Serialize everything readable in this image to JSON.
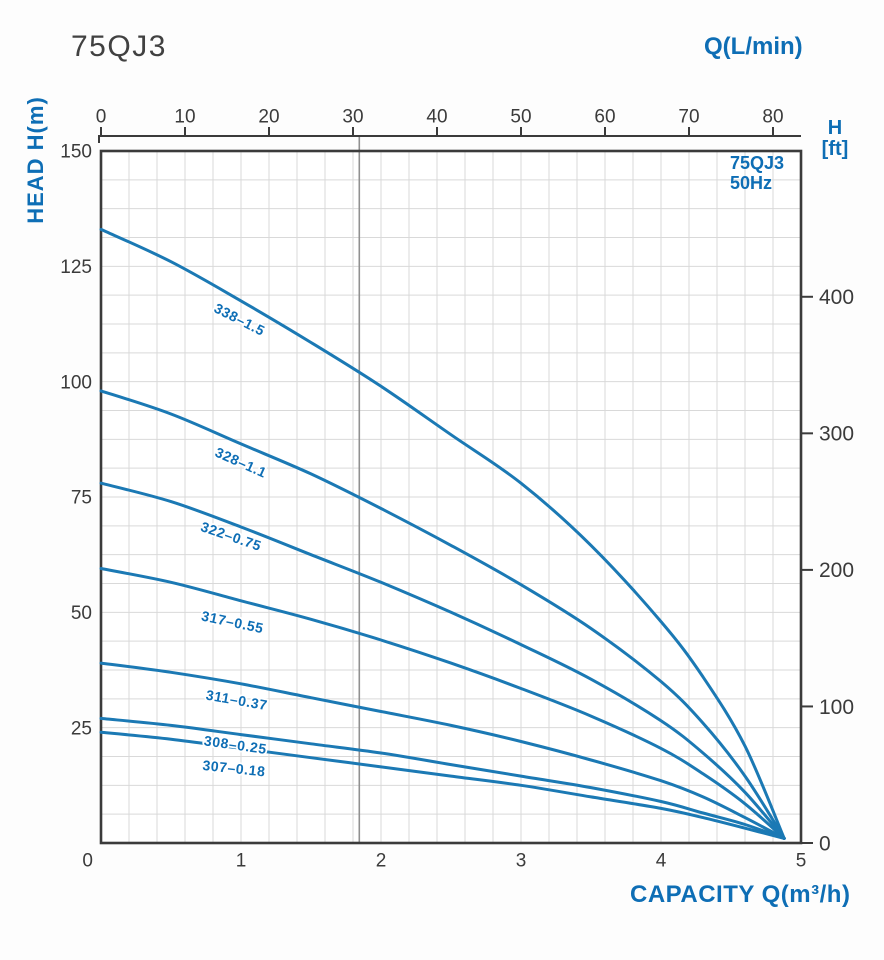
{
  "page": {
    "title": "75QJ3"
  },
  "labels": {
    "top_axis_title": "Q(L/min)",
    "left_axis_title": "HEAD H(m)",
    "right_axis_title_line1": "H",
    "right_axis_title_line2": "[ft]",
    "bottom_axis_title": "CAPACITY Q(m³/h)",
    "legend_line1": "75QJ3",
    "legend_line2": "50Hz"
  },
  "colors": {
    "curve_blue": "#1b79b4",
    "label_blue": "#0e6eb5",
    "title_dark": "#414141",
    "axis_dark": "#3b3b3b",
    "grid_gray": "#d9d9d9",
    "ref_line_gray": "#909090",
    "plot_bg": "#ffffff"
  },
  "chart_data": {
    "type": "line",
    "title": "75QJ3",
    "model": "75QJ3",
    "frequency": "50Hz",
    "x_bottom": {
      "title": "CAPACITY Q(m³/h)",
      "unit": "m³/h",
      "min": 0,
      "max": 5,
      "ticks": [
        1,
        2,
        3,
        4,
        5
      ],
      "origin_label": "0"
    },
    "x_top": {
      "title": "Q(L/min)",
      "unit": "L/min",
      "ticks": [
        0,
        10,
        20,
        30,
        40,
        50,
        60,
        70,
        80
      ],
      "lmin_per_m3h": 16.667
    },
    "y_left": {
      "title": "HEAD H(m)",
      "unit": "m",
      "min": 0,
      "max": 150,
      "ticks": [
        150,
        125,
        100,
        75,
        50,
        25
      ]
    },
    "y_right": {
      "title": "H [ft]",
      "unit": "ft",
      "ticks": [
        0,
        100,
        200,
        300,
        400
      ],
      "m_per_ft": 0.296
    },
    "reference_line_q_m3h": 1.845,
    "grid": {
      "cols": 25,
      "rows": 24,
      "grid_on": true
    },
    "legend_position": "top-right-inside",
    "series": [
      {
        "name": "338–1.5",
        "label_q": 0.99,
        "label_h": 113.5,
        "label_angle": 27,
        "points": [
          [
            0,
            133
          ],
          [
            0.5,
            126
          ],
          [
            1,
            117.5
          ],
          [
            1.5,
            108.5
          ],
          [
            2,
            99
          ],
          [
            2.5,
            88.5
          ],
          [
            3,
            78
          ],
          [
            3.5,
            64.5
          ],
          [
            4,
            48
          ],
          [
            4.3,
            36
          ],
          [
            4.6,
            21
          ],
          [
            4.88,
            1
          ]
        ]
      },
      {
        "name": "328–1.1",
        "label_q": 1.0,
        "label_h": 82.5,
        "label_angle": 24,
        "points": [
          [
            0,
            98
          ],
          [
            0.5,
            93
          ],
          [
            1,
            86.5
          ],
          [
            1.5,
            80
          ],
          [
            2,
            72.5
          ],
          [
            2.5,
            64.5
          ],
          [
            3,
            56
          ],
          [
            3.5,
            46.5
          ],
          [
            4,
            35
          ],
          [
            4.3,
            26
          ],
          [
            4.6,
            14.5
          ],
          [
            4.88,
            1
          ]
        ]
      },
      {
        "name": "322–0.75",
        "label_q": 0.93,
        "label_h": 66.5,
        "label_angle": 19,
        "points": [
          [
            0,
            78
          ],
          [
            0.5,
            74
          ],
          [
            1,
            68.5
          ],
          [
            1.5,
            62.5
          ],
          [
            2,
            56.5
          ],
          [
            2.5,
            50
          ],
          [
            3,
            43
          ],
          [
            3.5,
            35.5
          ],
          [
            4,
            26.5
          ],
          [
            4.3,
            19.5
          ],
          [
            4.6,
            11
          ],
          [
            4.88,
            1
          ]
        ]
      },
      {
        "name": "317–0.55",
        "label_q": 0.94,
        "label_h": 47.9,
        "label_angle": 12,
        "points": [
          [
            0,
            59.5
          ],
          [
            0.5,
            56.5
          ],
          [
            1,
            52.5
          ],
          [
            1.5,
            48.5
          ],
          [
            2,
            44
          ],
          [
            2.5,
            39
          ],
          [
            3,
            33.5
          ],
          [
            3.5,
            27.5
          ],
          [
            4,
            20.5
          ],
          [
            4.3,
            15
          ],
          [
            4.6,
            8.5
          ],
          [
            4.88,
            1
          ]
        ]
      },
      {
        "name": "311–0.37",
        "label_q": 0.97,
        "label_h": 31.0,
        "label_angle": 10,
        "points": [
          [
            0,
            39
          ],
          [
            0.5,
            37
          ],
          [
            1,
            34.5
          ],
          [
            1.5,
            31.5
          ],
          [
            2,
            28.5
          ],
          [
            2.5,
            25.5
          ],
          [
            3,
            22
          ],
          [
            3.5,
            18
          ],
          [
            4,
            13.5
          ],
          [
            4.3,
            10
          ],
          [
            4.6,
            5.5
          ],
          [
            4.88,
            1
          ]
        ]
      },
      {
        "name": "308–0.25",
        "label_q": 0.96,
        "label_h": 21.3,
        "label_angle": 8,
        "points": [
          [
            0,
            27
          ],
          [
            0.5,
            25.5
          ],
          [
            1,
            23.5
          ],
          [
            1.5,
            21.5
          ],
          [
            2,
            19.5
          ],
          [
            2.5,
            17
          ],
          [
            3,
            14.5
          ],
          [
            3.5,
            12
          ],
          [
            4,
            9
          ],
          [
            4.3,
            6.5
          ],
          [
            4.6,
            4
          ],
          [
            4.88,
            1
          ]
        ]
      },
      {
        "name": "307–0.18",
        "label_q": 0.95,
        "label_h": 16.2,
        "label_angle": 6,
        "points": [
          [
            0,
            24
          ],
          [
            0.5,
            22.5
          ],
          [
            1,
            20.5
          ],
          [
            1.5,
            18.5
          ],
          [
            2,
            16.5
          ],
          [
            2.5,
            14.5
          ],
          [
            3,
            12.5
          ],
          [
            3.5,
            10
          ],
          [
            4,
            7.5
          ],
          [
            4.3,
            5.5
          ],
          [
            4.6,
            3.2
          ],
          [
            4.88,
            1
          ]
        ]
      }
    ]
  }
}
